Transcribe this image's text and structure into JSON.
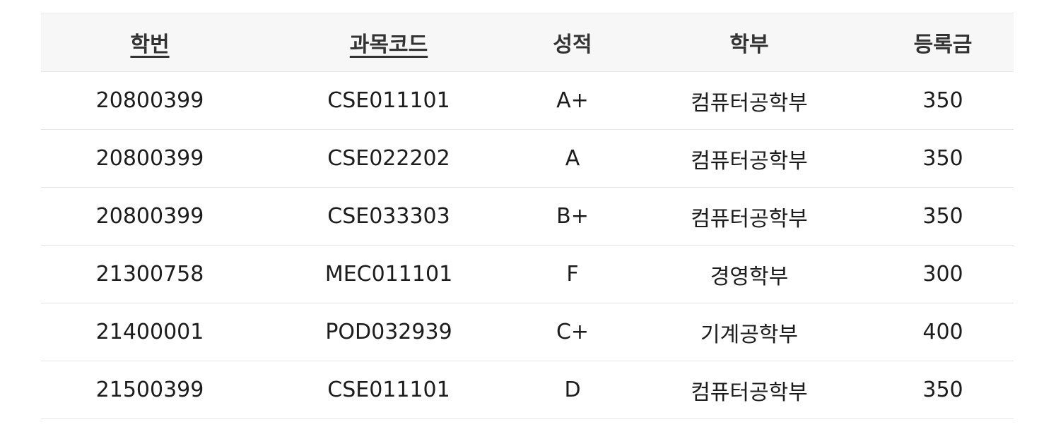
{
  "table": {
    "headers": [
      {
        "label": "학번",
        "sortable": true
      },
      {
        "label": "과목코드",
        "sortable": true
      },
      {
        "label": "성적",
        "sortable": false
      },
      {
        "label": "학부",
        "sortable": false
      },
      {
        "label": "등록금",
        "sortable": false
      }
    ],
    "rows": [
      [
        "20800399",
        "CSE011101",
        "A+",
        "컴퓨터공학부",
        "350"
      ],
      [
        "20800399",
        "CSE022202",
        "A",
        "컴퓨터공학부",
        "350"
      ],
      [
        "20800399",
        "CSE033303",
        "B+",
        "컴퓨터공학부",
        "350"
      ],
      [
        "21300758",
        "MEC011101",
        "F",
        "경영학부",
        "300"
      ],
      [
        "21400001",
        "POD032939",
        "C+",
        "기계공학부",
        "400"
      ],
      [
        "21500399",
        "CSE011101",
        "D",
        "컴퓨터공학부",
        "350"
      ]
    ]
  },
  "colors": {
    "header_background": "#f7f7f7",
    "row_divider": "#e6e6e6",
    "text": "#1c1c1c"
  }
}
